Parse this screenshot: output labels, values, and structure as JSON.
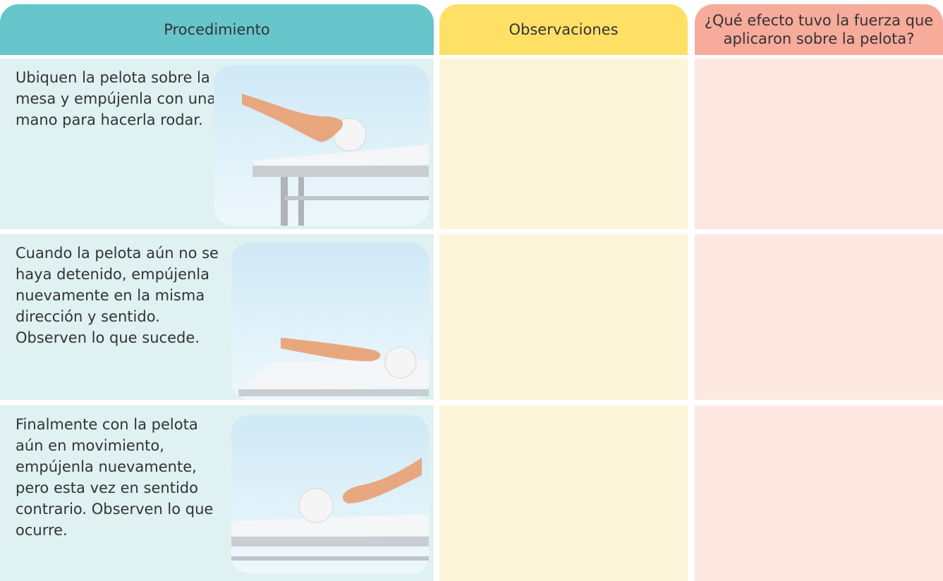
{
  "header": {
    "procedure": "Procedimiento",
    "observations": "Observaciones",
    "effect": "¿Qué efecto tuvo la fuerza que aplicaron sobre la pelota?"
  },
  "rows": [
    {
      "procedure": "Ubiquen la pelota sobre la mesa y empújenla con una mano para hacerla rodar."
    },
    {
      "procedure": "Cuando la pelota aún no se haya detenido, empújenla nuevamente en la misma dirección y sentido. Observen lo que sucede."
    },
    {
      "procedure": "Finalmente con la pelota aún en movimiento, empújenla nuevamente, pero esta vez en sentido contrario. Observen lo que ocurre."
    }
  ]
}
